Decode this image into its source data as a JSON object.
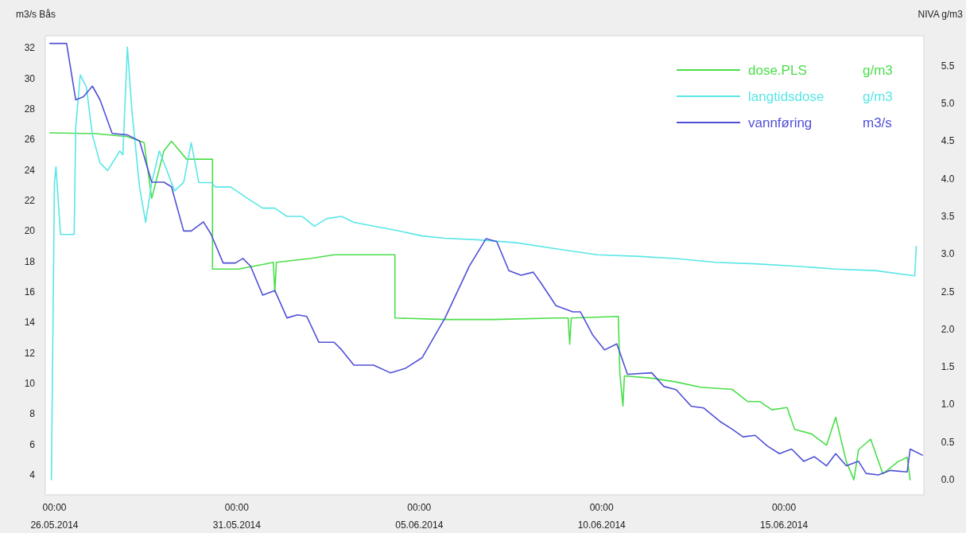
{
  "chart_data": {
    "type": "line",
    "ylabel": "m3/s  Bås",
    "y2label": "NIVA  g/m3",
    "xlim": [
      "2014-05-25T18:00",
      "2014-06-18T20:00"
    ],
    "xticks": [
      {
        "value": "2014-05-26T00:00",
        "label": "00:00\n26.05.2014"
      },
      {
        "value": "2014-05-31T00:00",
        "label": "00:00\n31.05.2014"
      },
      {
        "value": "2014-06-05T00:00",
        "label": "00:00\n05.06.2014"
      },
      {
        "value": "2014-06-10T00:00",
        "label": "00:00\n10.06.2014"
      },
      {
        "value": "2014-06-15T00:00",
        "label": "00:00\n15.06.2014"
      }
    ],
    "ylim": [
      2.7,
      32.8
    ],
    "yticks": [
      4,
      6,
      8,
      10,
      12,
      14,
      16,
      18,
      20,
      22,
      24,
      26,
      28,
      30,
      32
    ],
    "y2lim": [
      -0.2,
      5.9
    ],
    "y2ticks": [
      {
        "value": 0,
        "label": "0.0"
      },
      0.5,
      {
        "value": 1,
        "label": "1.0"
      },
      1.5,
      {
        "value": 2,
        "label": "2.0"
      },
      2.5,
      {
        "value": 3,
        "label": "3.0"
      },
      3.5,
      {
        "value": 4,
        "label": "4.0"
      },
      4.5,
      {
        "value": 5,
        "label": "5.0"
      },
      5.5
    ],
    "legend": "top right",
    "grid": false,
    "line_style": "solid",
    "marker": "none",
    "annotations": [
      "g/m3",
      "g/m3",
      "m3/s"
    ],
    "series": [
      {
        "name": "dose.PLS",
        "color": "#4ade4a",
        "axis": "y2",
        "x": [
          "2014-05-25T21:00",
          "2014-05-27T03:00",
          "2014-05-28T00:00",
          "2014-05-28T11:00",
          "2014-05-28T16:00",
          "2014-05-29T00:00",
          "2014-05-29T05:00",
          "2014-05-29T15:00",
          "2014-05-30T04:00",
          "2014-05-30T08:00",
          "2014-05-30T08:00",
          "2014-05-31T01:00",
          "2014-05-31T17:00",
          "2014-06-01T00:00",
          "2014-06-01T01:00",
          "2014-06-01T02:00",
          "2014-06-02T00:00",
          "2014-06-02T16:00",
          "2014-06-04T08:00",
          "2014-06-04T08:00",
          "2014-06-05T17:00",
          "2014-06-07T01:00",
          "2014-06-08T18:00",
          "2014-06-09T02:00",
          "2014-06-09T03:00",
          "2014-06-09T04:00",
          "2014-06-10T11:00",
          "2014-06-10T12:00",
          "2014-06-10T14:00",
          "2014-06-10T15:00",
          "2014-06-11T09:00",
          "2014-06-12T01:00",
          "2014-06-12T17:00",
          "2014-06-13T14:00",
          "2014-06-14T00:00",
          "2014-06-14T08:00",
          "2014-06-14T16:00",
          "2014-06-15T02:00",
          "2014-06-15T07:00",
          "2014-06-15T18:00",
          "2014-06-16T04:00",
          "2014-06-16T10:00",
          "2014-06-16T17:00",
          "2014-06-16T22:00",
          "2014-06-17T01:00",
          "2014-06-17T09:00",
          "2014-06-17T17:00",
          "2014-06-18T03:00",
          "2014-06-18T09:00",
          "2014-06-18T11:00"
        ],
        "values": [
          4.61,
          4.6,
          4.56,
          4.48,
          3.74,
          4.37,
          4.5,
          4.26,
          4.26,
          4.26,
          2.8,
          2.8,
          2.86,
          2.89,
          2.49,
          2.89,
          2.94,
          2.99,
          2.99,
          2.15,
          2.13,
          2.13,
          2.15,
          2.15,
          1.8,
          2.15,
          2.17,
          1.41,
          0.98,
          1.38,
          1.35,
          1.3,
          1.23,
          1.2,
          1.04,
          1.04,
          0.93,
          0.96,
          0.67,
          0.61,
          0.46,
          0.83,
          0.24,
          0.0,
          0.4,
          0.54,
          0.08,
          0.24,
          0.3,
          0.0
        ]
      },
      {
        "name": "langtidsdose",
        "color": "#5ae6e6",
        "axis": "y2",
        "x": [
          "2014-05-25T22:00",
          "2014-05-26T00:00",
          "2014-05-26T01:00",
          "2014-05-26T04:00",
          "2014-05-26T13:00",
          "2014-05-26T14:00",
          "2014-05-26T17:00",
          "2014-05-26T21:00",
          "2014-05-27T01:00",
          "2014-05-27T06:00",
          "2014-05-27T11:00",
          "2014-05-27T19:00",
          "2014-05-27T21:00",
          "2014-05-28T00:00",
          "2014-05-28T03:00",
          "2014-05-28T08:00",
          "2014-05-28T12:00",
          "2014-05-28T16:00",
          "2014-05-28T21:00",
          "2014-05-29T02:00",
          "2014-05-29T07:00",
          "2014-05-29T13:00",
          "2014-05-29T18:00",
          "2014-05-29T23:00",
          "2014-05-30T07:00",
          "2014-05-30T10:00",
          "2014-05-30T20:00",
          "2014-05-31T07:00",
          "2014-05-31T17:00",
          "2014-06-01T01:00",
          "2014-06-01T09:00",
          "2014-06-01T19:00",
          "2014-06-02T03:00",
          "2014-06-02T11:00",
          "2014-06-02T21:00",
          "2014-06-03T05:00",
          "2014-06-03T18:00",
          "2014-06-04T10:00",
          "2014-06-05T02:00",
          "2014-06-05T17:00",
          "2014-06-06T14:00",
          "2014-06-07T16:00",
          "2014-06-08T18:00",
          "2014-06-09T21:00",
          "2014-06-10T23:00",
          "2014-06-12T01:00",
          "2014-06-13T03:00",
          "2014-06-14T05:00",
          "2014-06-15T07:00",
          "2014-06-16T10:00",
          "2014-06-17T12:00",
          "2014-06-18T14:00",
          "2014-06-18T15:00"
        ],
        "values": [
          0.0,
          3.95,
          4.16,
          3.26,
          3.26,
          4.69,
          5.38,
          5.22,
          4.58,
          4.21,
          4.11,
          4.37,
          4.32,
          5.75,
          4.9,
          3.89,
          3.42,
          3.95,
          4.37,
          4.11,
          3.84,
          3.95,
          4.48,
          3.95,
          3.95,
          3.89,
          3.89,
          3.74,
          3.61,
          3.61,
          3.5,
          3.5,
          3.37,
          3.47,
          3.5,
          3.42,
          3.37,
          3.31,
          3.24,
          3.21,
          3.19,
          3.15,
          3.07,
          2.99,
          2.97,
          2.94,
          2.89,
          2.87,
          2.84,
          2.8,
          2.78,
          2.71,
          3.1
        ]
      },
      {
        "name": "vannføring",
        "color": "#5050d8",
        "x": [
          "2014-05-25T21:00",
          "2014-05-26T06:00",
          "2014-05-26T08:00",
          "2014-05-26T14:00",
          "2014-05-26T19:00",
          "2014-05-27T01:00",
          "2014-05-27T06:00",
          "2014-05-27T14:00",
          "2014-05-28T00:00",
          "2014-05-28T08:00",
          "2014-05-28T16:00",
          "2014-05-29T00:00",
          "2014-05-29T05:00",
          "2014-05-29T13:00",
          "2014-05-29T18:00",
          "2014-05-30T02:00",
          "2014-05-30T07:00",
          "2014-05-30T15:00",
          "2014-05-30T23:00",
          "2014-05-31T04:00",
          "2014-05-31T09:00",
          "2014-05-31T17:00",
          "2014-06-01T01:00",
          "2014-06-01T09:00",
          "2014-06-01T16:00",
          "2014-06-01T22:00",
          "2014-06-02T06:00",
          "2014-06-02T16:00",
          "2014-06-02T21:00",
          "2014-06-03T05:00",
          "2014-06-03T18:00",
          "2014-06-04T05:00",
          "2014-06-04T15:00",
          "2014-06-05T02:00",
          "2014-06-05T17:00",
          "2014-06-06T09:00",
          "2014-06-06T20:00",
          "2014-06-07T03:00",
          "2014-06-07T11:00",
          "2014-06-07T19:00",
          "2014-06-08T03:00",
          "2014-06-08T08:00",
          "2014-06-08T18:00",
          "2014-06-09T05:00",
          "2014-06-09T10:00",
          "2014-06-09T18:00",
          "2014-06-10T02:00",
          "2014-06-10T10:00",
          "2014-06-10T17:00",
          "2014-06-11T09:00",
          "2014-06-11T17:00",
          "2014-06-12T01:00",
          "2014-06-12T11:00",
          "2014-06-12T19:00",
          "2014-06-13T06:00",
          "2014-06-13T14:00",
          "2014-06-13T21:00",
          "2014-06-14T05:00",
          "2014-06-14T13:00",
          "2014-06-14T21:00",
          "2014-06-15T05:00",
          "2014-06-15T13:00",
          "2014-06-15T20:00",
          "2014-06-16T04:00",
          "2014-06-16T10:00",
          "2014-06-16T17:00",
          "2014-06-17T01:00",
          "2014-06-17T06:00",
          "2014-06-17T14:00",
          "2014-06-17T22:00",
          "2014-06-18T09:00",
          "2014-06-18T11:00",
          "2014-06-18T19:00"
        ],
        "values": [
          32.3,
          32.3,
          32.3,
          28.6,
          28.8,
          29.5,
          28.6,
          26.4,
          26.3,
          25.9,
          23.2,
          23.2,
          22.9,
          20.0,
          20.0,
          20.6,
          19.8,
          17.9,
          17.9,
          18.2,
          17.7,
          15.8,
          16.1,
          14.3,
          14.5,
          14.4,
          12.7,
          12.7,
          12.2,
          11.2,
          11.2,
          10.7,
          11.0,
          11.7,
          14.3,
          17.7,
          19.5,
          19.3,
          17.4,
          17.1,
          17.3,
          16.6,
          15.1,
          14.7,
          14.7,
          13.2,
          12.2,
          12.6,
          10.6,
          10.7,
          9.8,
          9.6,
          8.5,
          8.4,
          7.5,
          7.0,
          6.5,
          6.6,
          5.9,
          5.4,
          5.7,
          4.9,
          5.2,
          4.6,
          5.4,
          4.6,
          4.9,
          4.1,
          4.0,
          4.3,
          4.2,
          5.7,
          5.3
        ]
      }
    ]
  }
}
